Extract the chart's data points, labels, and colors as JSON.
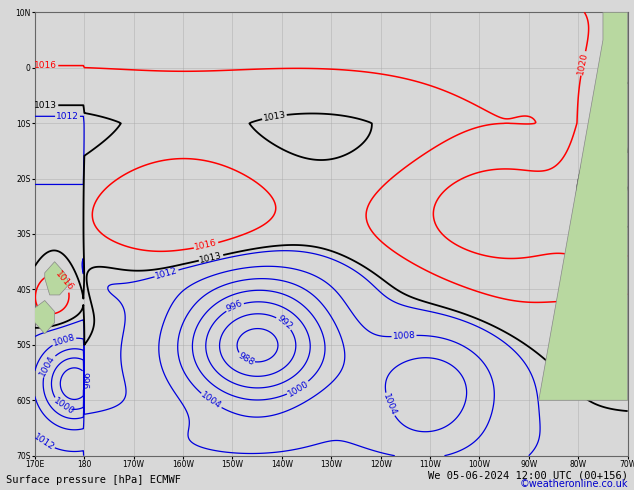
{
  "title_left": "Surface pressure [hPa] ECMWF",
  "title_right": "We 05-06-2024 12:00 UTC (00+156)",
  "copyright": "©weatheronline.co.uk",
  "background_color": "#d8d8d8",
  "land_color": "#b8d8a0",
  "grid_color": "#aaaaaa",
  "ocean_color": "#d8d8d8",
  "lon_min": -180,
  "lon_max": -60,
  "lat_min": -70,
  "lat_max": 10,
  "label_fontsize": 6.5,
  "title_fontsize": 7.5,
  "copyright_fontsize": 7,
  "copyright_color": "#0000cc"
}
